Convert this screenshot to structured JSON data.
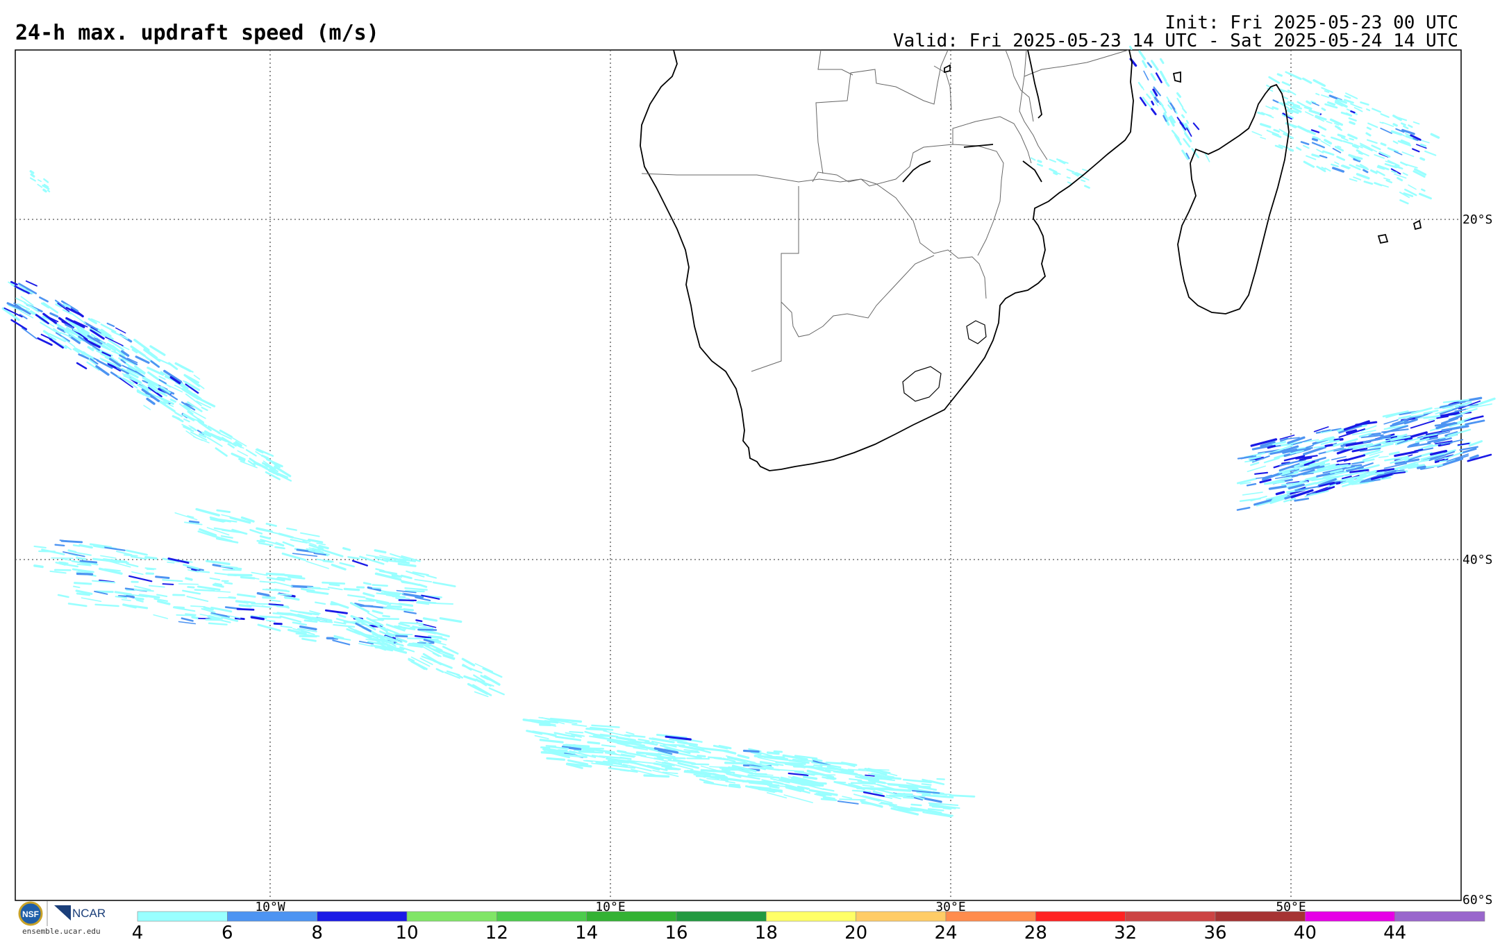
{
  "header": {
    "title": "24-h max. updraft speed (m/s)",
    "init": "Init: Fri 2025-05-23 00 UTC",
    "valid": "Valid: Fri 2025-05-23 14 UTC - Sat 2025-05-24 14 UTC"
  },
  "map": {
    "lat_labels": [
      "20°S",
      "40°S",
      "60°S"
    ],
    "lon_labels": [
      "10°W",
      "10°E",
      "30°E",
      "50°E"
    ],
    "lon_range_deg": [
      -25,
      60
    ],
    "lat_range_deg": [
      -10,
      -60
    ]
  },
  "colorbar": {
    "ticks": [
      "4",
      "6",
      "8",
      "10",
      "12",
      "14",
      "16",
      "18",
      "20",
      "24",
      "28",
      "32",
      "36",
      "40",
      "44"
    ],
    "colors": [
      "#99ffff",
      "#4d94f2",
      "#1a1ae6",
      "#80e566",
      "#4dcc4d",
      "#33b233",
      "#229940",
      "#ffff66",
      "#ffcc66",
      "#ff8c4d",
      "#ff2222",
      "#cc4444",
      "#a63333",
      "#e600e6",
      "#9966cc"
    ]
  },
  "branding": {
    "logo_nsf": "NSF",
    "logo_ncar": "NCAR",
    "url": "ensemble.ucar.edu"
  }
}
